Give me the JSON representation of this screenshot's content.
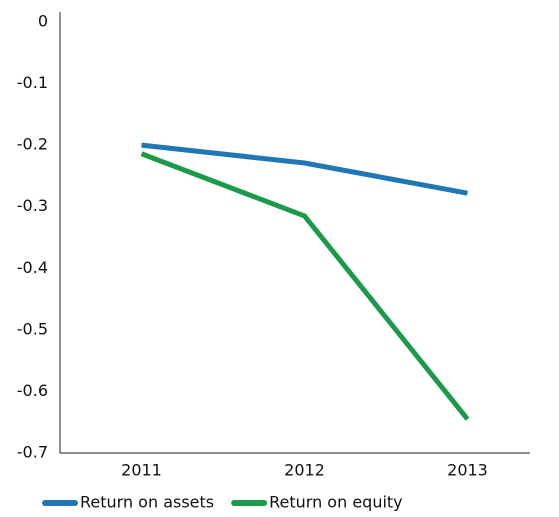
{
  "chart_data": {
    "type": "line",
    "categories": [
      "2011",
      "2012",
      "2013"
    ],
    "series": [
      {
        "name": "Return on assets",
        "color": "#1f78b4",
        "values": [
          -0.2,
          -0.229,
          -0.278
        ]
      },
      {
        "name": "Return on equity",
        "color": "#1b9a4a",
        "values": [
          -0.214,
          -0.315,
          -0.645
        ]
      }
    ],
    "ylim": [
      -0.7,
      0
    ],
    "yticks": [
      0,
      -0.1,
      -0.2,
      -0.3,
      -0.4,
      -0.5,
      -0.6,
      -0.7
    ],
    "grid": false,
    "legend": "bottom"
  }
}
